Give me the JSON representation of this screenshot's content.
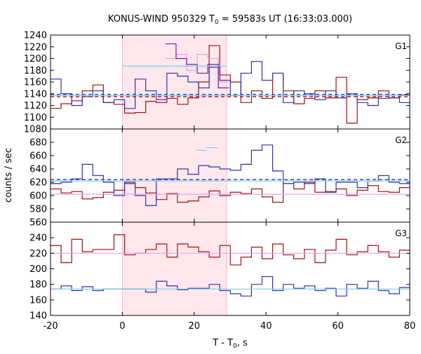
{
  "chart_data": {
    "type": "line",
    "title": "KONUS-WIND 950329 T",
    "title_sub": "0",
    "title_rest": " = 59583s UT (16:33:03.000)",
    "xlabel": "T - T",
    "xlabel_sub": "0",
    "xlabel_rest": ", s",
    "ylabel": "counts / sec",
    "xlim": [
      -20,
      80
    ],
    "xticks": [
      -20,
      0,
      20,
      40,
      60,
      80
    ],
    "highlight": {
      "x_start": 0,
      "x_end": 29,
      "color": "#ffe8ec"
    },
    "bin_width": 2.944,
    "colors": {
      "red": "#a01010",
      "blue": "#3030b0",
      "cyan": "#7ccde8",
      "pink": "#e8a0e8",
      "purple": "#7a1a9a"
    },
    "panels": [
      {
        "label": "G1",
        "ylim": [
          1080,
          1240
        ],
        "yticks": [
          1080,
          1100,
          1120,
          1140,
          1160,
          1180,
          1200,
          1220,
          1240
        ],
        "series": [
          {
            "color": "red",
            "start": -20,
            "values": [
              1115,
              1123,
              1128,
              1145,
              1155,
              1125,
              1122,
              1107,
              1108,
              1127,
              1125,
              1132,
              1122,
              1133,
              1160,
              1222,
              1172,
              1160,
              1125,
              1145,
              1132,
              1175,
              1145,
              1123,
              1132,
              1145,
              1133,
              1168,
              1090,
              1130,
              1133,
              1145,
              1133,
              1138,
              1135,
              1118,
              1142,
              1125,
              1132,
              1143,
              1135,
              1115,
              1145,
              1123,
              1128,
              1160,
              1110,
              1118,
              1132,
              1120,
              1155,
              1135
            ]
          },
          {
            "color": "blue",
            "start": -20,
            "values": [
              1165,
              1140,
              1120,
              1135,
              1145,
              1125,
              1130,
              1115,
              1165,
              1145,
              1130,
              1175,
              1170,
              1160,
              1150,
              1185,
              1163,
              1137,
              1175,
              1195,
              1163,
              1175,
              1125,
              1145,
              1140,
              1130,
              1145,
              1133,
              1140,
              1125,
              1120,
              1132,
              1133,
              1125,
              1150,
              1128,
              1135,
              1130,
              1120,
              1125,
              1142,
              1135,
              1122,
              1148,
              1130,
              1133,
              1125,
              1118,
              1140,
              1115,
              1138,
              1160
            ]
          },
          {
            "color": "pink",
            "start": 12,
            "values": [
              1200,
              1207,
              1180,
              1207,
              1200,
              1160
            ]
          },
          {
            "color": "purple",
            "start": 12,
            "values": [
              1225,
              1200,
              1190,
              1175,
              1190,
              1150
            ]
          },
          {
            "color": "cyan",
            "start": 0,
            "end": 29,
            "values": [
              1187
            ]
          },
          {
            "color": "cyan",
            "start": -20,
            "end": 80,
            "values": [
              1137
            ]
          },
          {
            "color": "blue",
            "start": -20,
            "end": 80,
            "values": [
              1139
            ],
            "dash": true
          },
          {
            "color": "red",
            "start": -20,
            "end": 80,
            "values": [
              1135
            ],
            "dash": true
          }
        ]
      },
      {
        "label": "G2",
        "ylim": [
          560,
          700
        ],
        "yticks": [
          560,
          580,
          600,
          620,
          640,
          660,
          680
        ],
        "series": [
          {
            "color": "red",
            "start": -20,
            "values": [
              610,
              604,
              606,
              595,
              597,
              605,
              608,
              618,
              612,
              604,
              594,
              603,
              590,
              592,
              598,
              607,
              600,
              605,
              603,
              610,
              598,
              590,
              618,
              610,
              620,
              605,
              606,
              610,
              600,
              608,
              615,
              606,
              605,
              612,
              598,
              610,
              597,
              605,
              603,
              596,
              595,
              608,
              602,
              604,
              606,
              598,
              603,
              610,
              598,
              606,
              590,
              603
            ]
          },
          {
            "color": "blue",
            "start": -20,
            "values": [
              618,
              620,
              625,
              647,
              630,
              620,
              600,
              620,
              600,
              585,
              625,
              625,
              640,
              632,
              645,
              643,
              640,
              638,
              647,
              668,
              676,
              637,
              618,
              620,
              618,
              625,
              605,
              620,
              620,
              612,
              622,
              630,
              620,
              618,
              625,
              616,
              628,
              640,
              636,
              628,
              620,
              614,
              640,
              625,
              615,
              622,
              618,
              612,
              608,
              615,
              620,
              622
            ]
          },
          {
            "color": "cyan",
            "start": 20.6,
            "end": 23.5,
            "values": [
              668
            ]
          },
          {
            "color": "cyan",
            "start": 23.5,
            "end": 26.5,
            "values": [
              672
            ]
          },
          {
            "color": "pink",
            "start": -20,
            "end": 80,
            "values": [
              602
            ]
          },
          {
            "color": "cyan",
            "start": -20,
            "end": 80,
            "values": [
              622
            ]
          },
          {
            "color": "blue",
            "start": -20,
            "end": 80,
            "values": [
              624
            ],
            "dash": true
          }
        ]
      },
      {
        "label": "G3",
        "ylim": [
          140,
          260
        ],
        "yticks": [
          140,
          160,
          180,
          200,
          220,
          240
        ],
        "series": [
          {
            "color": "red",
            "start": -20,
            "values": [
              230,
              208,
              238,
              222,
              225,
              225,
              244,
              218,
              220,
              225,
              232,
              215,
              232,
              228,
              222,
              215,
              230,
              205,
              215,
              228,
              213,
              232,
              218,
              213,
              225,
              208,
              224,
              238,
              218,
              222,
              230,
              222,
              215,
              224,
              215,
              222,
              232,
              226,
              225,
              220,
              228,
              218,
              232,
              220,
              218,
              235,
              222,
              212,
              220,
              226,
              218,
              218
            ]
          },
          {
            "color": "blue",
            "start": -20,
            "values": [
              174,
              178,
              172,
              177,
              172,
              174,
              174,
              174,
              174,
              170,
              184,
              178,
              173,
              175,
              175,
              180,
              172,
              168,
              165,
              180,
              190,
              172,
              180,
              175,
              178,
              172,
              175,
              165,
              180,
              175,
              184,
              172,
              168,
              176,
              175,
              185,
              175,
              178,
              174,
              170,
              178,
              175,
              182,
              170,
              173,
              168,
              175,
              174,
              170,
              180,
              190,
              175
            ]
          },
          {
            "color": "pink",
            "start": -20,
            "end": 80,
            "values": [
              220
            ]
          },
          {
            "color": "cyan",
            "start": -20,
            "end": 80,
            "values": [
              174
            ]
          }
        ]
      }
    ]
  }
}
